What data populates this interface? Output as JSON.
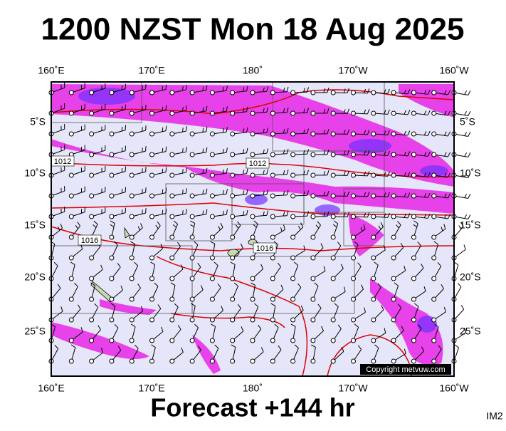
{
  "header": {
    "title": "1200 NZST Mon 18 Aug 2025"
  },
  "axes": {
    "top_labels": [
      "160˚E",
      "170˚E",
      "180˚",
      "170˚W",
      "160˚W"
    ],
    "bottom_labels": [
      "160˚E",
      "170˚E",
      "180˚",
      "170˚W",
      "160˚W"
    ],
    "left_labels": [
      "5˚S",
      "10˚S",
      "15˚S",
      "20˚S",
      "25˚S"
    ],
    "right_labels": [
      "5˚S",
      "10˚S",
      "15˚S",
      "20˚S",
      "25˚S"
    ]
  },
  "isobar_labels": [
    "1012",
    "1012",
    "1016",
    "1016"
  ],
  "copyright": "Copyright metvuw.com",
  "footer": "Forecast +144 hr",
  "corner_tag": "IM2"
}
